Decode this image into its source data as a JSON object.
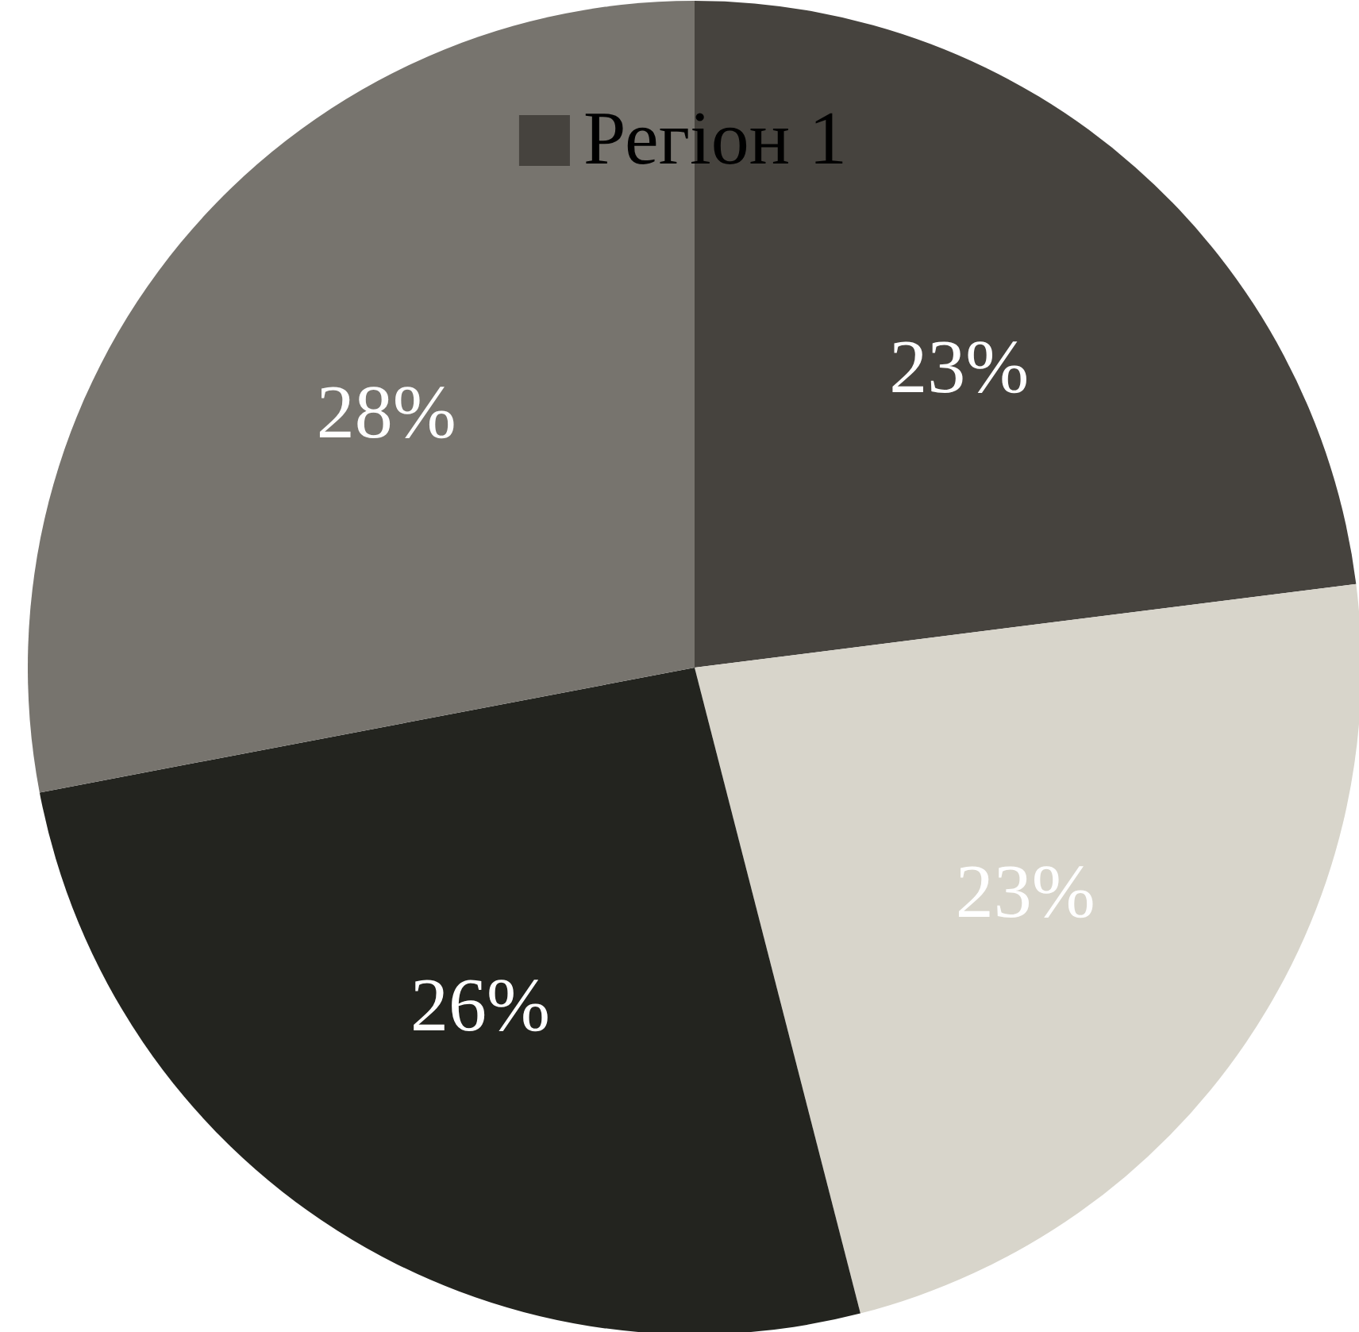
{
  "chart_data": {
    "type": "pie",
    "categories": [
      "Регіон 1",
      null,
      null,
      null
    ],
    "values": [
      23,
      23,
      26,
      28
    ],
    "colors": [
      "#46433e",
      "#d8d5cb",
      "#23241f",
      "#77746e"
    ],
    "value_labels": [
      "23%",
      "23%",
      "26%",
      "28%"
    ],
    "legend": "top"
  }
}
